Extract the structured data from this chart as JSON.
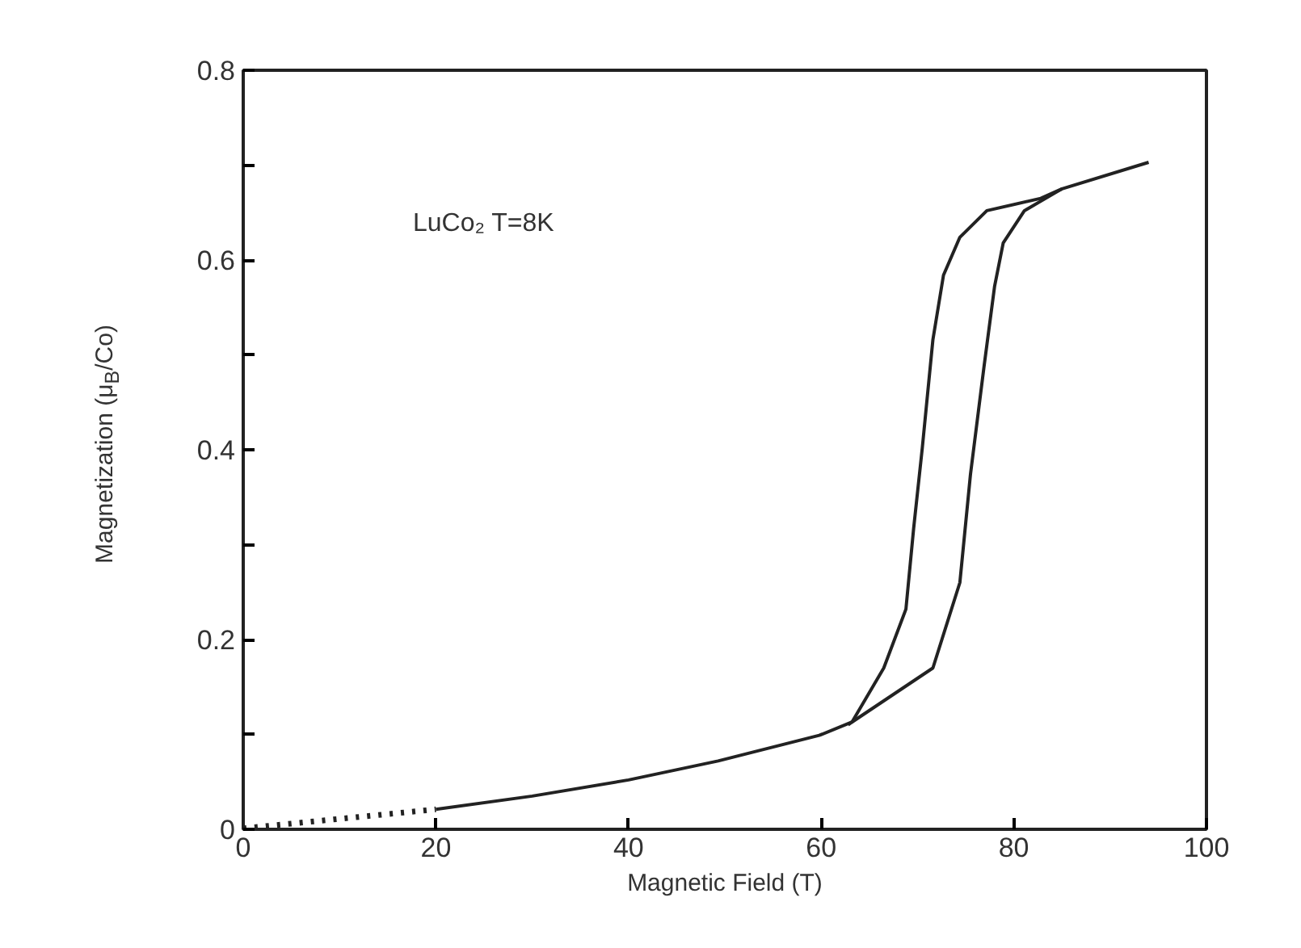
{
  "chart_data": {
    "type": "line",
    "xlabel": "Magnetic Field (T)",
    "ylabel": "Magnetization (μ$_{B}$/Co)",
    "annotations": [
      "LuCo₂  T=8K"
    ],
    "xlim": [
      0,
      100
    ],
    "xticks": [
      0,
      20,
      40,
      60,
      80,
      100
    ],
    "ylim": [
      0,
      0.8
    ],
    "yticks": [
      0,
      {
        "value": 0.1,
        "label": null
      },
      0.2,
      {
        "value": 0.3,
        "label": null
      },
      0.4,
      {
        "value": 0.5,
        "label": null
      },
      0.6,
      {
        "value": 0.7,
        "label": null
      },
      0.8
    ],
    "grid": false,
    "series": [
      {
        "color": "#222222",
        "line_style": "dotted",
        "x": [
          0,
          5,
          10,
          15,
          20
        ],
        "values": [
          0.001,
          0.006,
          0.011,
          0.016,
          0.021
        ]
      },
      {
        "color": "#222222",
        "line_style": "solid",
        "x": [
          20,
          30,
          40,
          49.3,
          59.8,
          63.2,
          66.5,
          68.8,
          69.6,
          70.5,
          71.6,
          72.7,
          74.4,
          77.2,
          82.8,
          85,
          94
        ],
        "values": [
          0.021,
          0.035,
          0.052,
          0.072,
          0.099,
          0.113,
          0.17,
          0.232,
          0.317,
          0.402,
          0.516,
          0.584,
          0.624,
          0.652,
          0.665,
          0.675,
          0.703
        ]
      },
      {
        "color": "#222222",
        "line_style": "solid",
        "x": [
          62.8,
          63.2,
          71.6,
          74.4,
          75.5,
          76.9,
          78.0,
          78.9,
          81.1,
          85
        ],
        "values": [
          0.11,
          0.113,
          0.17,
          0.26,
          0.374,
          0.487,
          0.572,
          0.618,
          0.652,
          0.675
        ]
      }
    ]
  }
}
